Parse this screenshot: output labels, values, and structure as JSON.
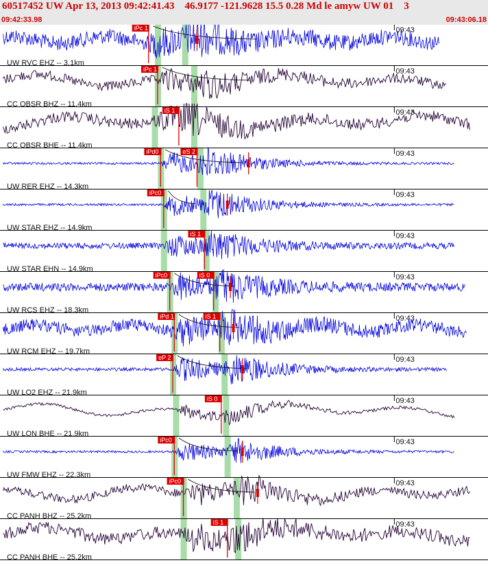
{
  "header": {
    "title": "60517452 UW Apr 13, 2013 09:42:41.43    46.9177 -121.9628 15.5 0.28 Md le amyw UW 01    3",
    "time_start": "09:42:33.98",
    "time_end": "09:43:06.18"
  },
  "colors": {
    "header_bg": "#e8e8e8",
    "header_text": "#cc0000",
    "pick": "#dd0000",
    "window": "#a8dca8",
    "trace_blue": "#0000dd",
    "trace_dark": "#220033"
  },
  "tick_label": "09:43",
  "traces": [
    {
      "label": "UW RVC EHZ -- 3.1km",
      "color": "trace_blue",
      "p_pick": "iPc 1",
      "p_time": 9.8,
      "s_pick": "",
      "s_time": null,
      "window1": 10.4,
      "window2": 12.2,
      "max_time": 13.0,
      "end_time": 29.0,
      "coda_end": 17.0,
      "noise": 0.55,
      "burst": 0.9
    },
    {
      "label": "CC OBSR BHZ -- 11.4km",
      "color": "trace_dark",
      "p_pick": "iPc 1",
      "p_time": 10.4,
      "s_pick": "",
      "s_time": null,
      "window1": 10.4,
      "window2": 12.8,
      "max_time": 0,
      "end_time": 29.5,
      "coda_end": 16.6,
      "noise": 0.35,
      "burst": 0.7
    },
    {
      "label": "CC OBSR BHE -- 11.4km",
      "color": "trace_dark",
      "p_pick": "",
      "p_time": null,
      "s_pick": "iS 1",
      "s_time": 11.8,
      "window1": 10.2,
      "window2": 12.8,
      "max_time": 0,
      "end_time": 31.0,
      "coda_end": 0,
      "noise": 0.4,
      "burst": 0.8
    },
    {
      "label": "UW RER EHZ -- 14.3km",
      "color": "trace_blue",
      "p_pick": "iPd0",
      "p_time": 10.6,
      "s_pick": "eS 2",
      "s_time": 13.0,
      "window1": 10.6,
      "window2": 13.2,
      "max_time": 16.4,
      "end_time": 30.0,
      "coda_end": 16.0,
      "noise": 0.08,
      "burst": 1.0
    },
    {
      "label": "UW STAR EHZ -- 14.9km",
      "color": "trace_blue",
      "p_pick": "iPc0",
      "p_time": 10.8,
      "s_pick": "",
      "s_time": null,
      "window1": 10.8,
      "window2": 13.4,
      "max_time": 15.0,
      "end_time": 30.0,
      "coda_end": 13.0,
      "noise": 0.08,
      "burst": 0.95
    },
    {
      "label": "UW STAR EHN -- 14.9km",
      "color": "trace_blue",
      "p_pick": "",
      "p_time": null,
      "s_pick": "iS 1",
      "s_time": 13.5,
      "window1": 10.8,
      "window2": 13.6,
      "max_time": 0,
      "end_time": 30.0,
      "coda_end": 0,
      "noise": 0.22,
      "burst": 0.85
    },
    {
      "label": "UW RCS EHZ -- 18.3km",
      "color": "trace_blue",
      "p_pick": "iPc0",
      "p_time": 11.2,
      "s_pick": "iS 0",
      "s_time": 14.1,
      "window1": 11.2,
      "window2": 14.2,
      "max_time": 15.2,
      "end_time": 30.7,
      "coda_end": 15.6,
      "noise": 0.3,
      "burst": 0.95
    },
    {
      "label": "UW RCM EHZ -- 19.7km",
      "color": "trace_blue",
      "p_pick": "iPd 1",
      "p_time": 11.5,
      "s_pick": "iS 1",
      "s_time": 14.5,
      "window1": 11.5,
      "window2": 14.6,
      "max_time": 15.4,
      "end_time": 30.8,
      "coda_end": 15.8,
      "noise": 0.45,
      "burst": 0.95
    },
    {
      "label": "UW LO2 EHZ -- 21.9km",
      "color": "trace_blue",
      "p_pick": "eP 2",
      "p_time": 11.4,
      "s_pick": "",
      "s_time": null,
      "window1": 11.4,
      "window2": 14.8,
      "max_time": 16.0,
      "end_time": 29.5,
      "coda_end": 16.4,
      "noise": 0.12,
      "burst": 1.0
    },
    {
      "label": "UW LON BHE -- 21.9km",
      "color": "trace_dark",
      "p_pick": "",
      "p_time": null,
      "s_pick": "iS 0",
      "s_time": 14.6,
      "window1": 11.6,
      "window2": 14.9,
      "max_time": 0,
      "end_time": 30.0,
      "coda_end": 0,
      "noise": 0.1,
      "burst": 0.55
    },
    {
      "label": "UW FMW EHZ -- 22.3km",
      "color": "trace_blue",
      "p_pick": "iPc0",
      "p_time": 11.5,
      "s_pick": "",
      "s_time": null,
      "window1": 11.5,
      "window2": 15.0,
      "max_time": 16.0,
      "end_time": 30.0,
      "coda_end": 15.6,
      "noise": 0.08,
      "burst": 0.8
    },
    {
      "label": "CC PANH BHZ -- 25.2km",
      "color": "trace_dark",
      "p_pick": "iPc0",
      "p_time": 12.1,
      "s_pick": "",
      "s_time": null,
      "window1": 12.1,
      "window2": 15.6,
      "max_time": 17.0,
      "end_time": 31.0,
      "coda_end": 16.8,
      "noise": 0.3,
      "burst": 0.8
    },
    {
      "label": "CC PANH BHE -- 25.2km",
      "color": "trace_dark",
      "p_pick": "",
      "p_time": null,
      "s_pick": "iS 1",
      "s_time": 15.0,
      "window1": 12.1,
      "window2": 15.7,
      "max_time": 0,
      "end_time": 31.0,
      "coda_end": 0,
      "noise": 0.45,
      "burst": 0.85
    }
  ]
}
